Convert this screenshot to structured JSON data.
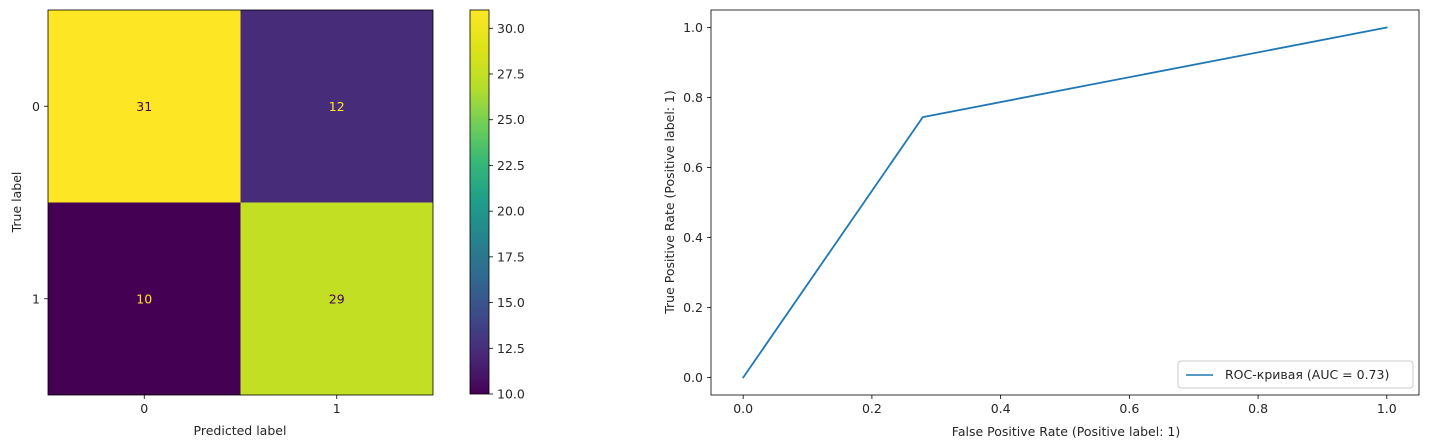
{
  "chart_data": [
    {
      "type": "heatmap",
      "xlabel": "Predicted label",
      "ylabel": "True label",
      "x_categories": [
        "0",
        "1"
      ],
      "y_categories": [
        "0",
        "1"
      ],
      "matrix": [
        [
          31,
          12
        ],
        [
          10,
          29
        ]
      ],
      "colormap": "viridis",
      "colorbar": {
        "range": [
          10,
          31
        ],
        "ticks": [
          10.0,
          12.5,
          15.0,
          17.5,
          20.0,
          22.5,
          25.0,
          27.5,
          30.0
        ],
        "tick_labels": [
          "10.0",
          "12.5",
          "15.0",
          "17.5",
          "20.0",
          "22.5",
          "25.0",
          "27.5",
          "30.0"
        ]
      },
      "cell_colors": [
        [
          "#fde725",
          "#472c7a"
        ],
        [
          "#440154",
          "#c2df23"
        ]
      ],
      "label_colors": [
        [
          "#440154",
          "#fde725"
        ],
        [
          "#fde725",
          "#440154"
        ]
      ]
    },
    {
      "type": "line",
      "xlabel": "False Positive Rate (Positive label: 1)",
      "ylabel": "True Positive Rate (Positive label: 1)",
      "xlim": [
        -0.05,
        1.05
      ],
      "ylim": [
        -0.05,
        1.05
      ],
      "xticks": [
        "0.0",
        "0.2",
        "0.4",
        "0.6",
        "0.8",
        "1.0"
      ],
      "yticks": [
        "0.0",
        "0.2",
        "0.4",
        "0.6",
        "0.8",
        "1.0"
      ],
      "series": [
        {
          "name": "ROC-кривая (AUC = 0.73)",
          "color": "#1f77b4",
          "x": [
            0.0,
            0.279,
            1.0
          ],
          "y": [
            0.0,
            0.744,
            1.0
          ]
        }
      ],
      "legend_position": "lower-right",
      "grid": false
    }
  ]
}
